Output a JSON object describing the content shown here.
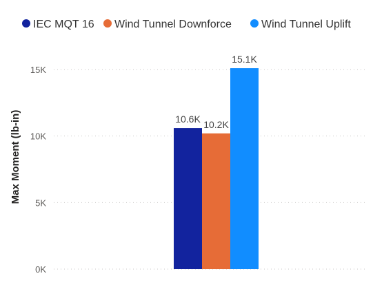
{
  "chart_data": {
    "type": "bar",
    "categories": [
      ""
    ],
    "series": [
      {
        "name": "IEC MQT 16",
        "values": [
          10600
        ],
        "label": "10.6K",
        "color": "#12239e"
      },
      {
        "name": "Wind Tunnel Downforce",
        "values": [
          10200
        ],
        "label": "10.2K",
        "color": "#e66c37"
      },
      {
        "name": "Wind Tunnel Uplift",
        "values": [
          15100
        ],
        "label": "15.1K",
        "color": "#118dff"
      }
    ],
    "title": "",
    "xlabel": "",
    "ylabel": "Max Moment (lb-in)",
    "ylim": [
      0,
      15000
    ],
    "yticks": [
      {
        "value": 0,
        "label": "0K"
      },
      {
        "value": 5000,
        "label": "5K"
      },
      {
        "value": 10000,
        "label": "10K"
      },
      {
        "value": 15000,
        "label": "15K"
      }
    ],
    "grid": true,
    "legend": "top"
  }
}
